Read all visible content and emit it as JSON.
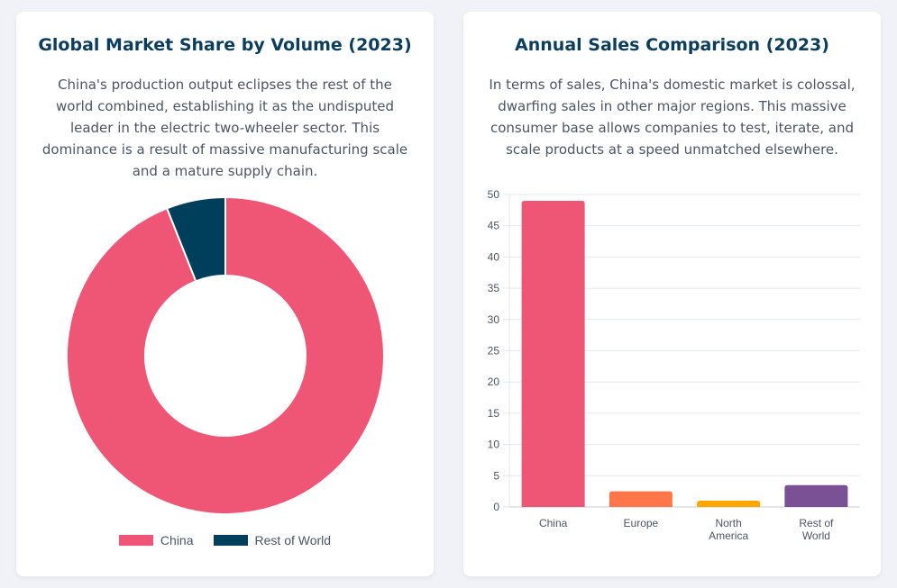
{
  "left_card": {
    "title": "Global Market Share by Volume (2023)",
    "description": "China's production output eclipses the rest of the world combined, establishing it as the undisputed leader in the electric two-wheeler sector. This dominance is a result of massive manufacturing scale and a mature supply chain."
  },
  "right_card": {
    "title": "Annual Sales Comparison (2023)",
    "description": "In terms of sales, China's domestic market is colossal, dwarfing sales in other major regions. This massive consumer base allows companies to test, iterate, and scale products at a speed unmatched elsewhere."
  },
  "chart_data": [
    {
      "type": "pie",
      "variant": "doughnut",
      "title": "Global Market Share by Volume (2023)",
      "categories": [
        "China",
        "Rest of World"
      ],
      "values": [
        94,
        6
      ],
      "colors": [
        "#ef5675",
        "#003f5c"
      ],
      "legend": {
        "position": "bottom",
        "labels": [
          "China",
          "Rest of World"
        ]
      }
    },
    {
      "type": "bar",
      "title": "Annual Sales Comparison (2023)",
      "categories": [
        [
          "China"
        ],
        [
          "Europe"
        ],
        [
          "North",
          "America"
        ],
        [
          "Rest of",
          "World"
        ]
      ],
      "category_names": [
        "China",
        "Europe",
        "North America",
        "Rest of World"
      ],
      "values": [
        49,
        2.5,
        1,
        3.5
      ],
      "colors": [
        "#ef5675",
        "#ff764a",
        "#ffa600",
        "#7a5195"
      ],
      "xlabel": "",
      "ylabel": "",
      "ylim": [
        0,
        50
      ],
      "yticks": [
        0,
        5,
        10,
        15,
        20,
        25,
        30,
        35,
        40,
        45,
        50
      ],
      "grid": true,
      "legend": "none"
    }
  ]
}
